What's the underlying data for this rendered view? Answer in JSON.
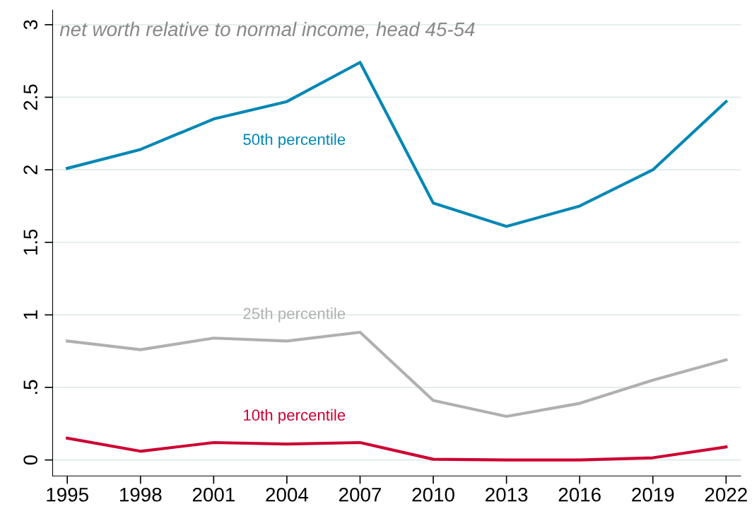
{
  "chart_data": {
    "type": "line",
    "subtitle": "net worth relative to normal income, head 45-54",
    "x": [
      1995,
      1998,
      2001,
      2004,
      2007,
      2010,
      2013,
      2016,
      2019,
      2022
    ],
    "series": [
      {
        "name": "50th percentile",
        "color": "#0087b4",
        "values": [
          2.01,
          2.14,
          2.35,
          2.47,
          2.74,
          1.77,
          1.61,
          1.75,
          2.0,
          2.47
        ]
      },
      {
        "name": "25th percentile",
        "color": "#b0b0b0",
        "values": [
          0.82,
          0.76,
          0.84,
          0.82,
          0.88,
          0.41,
          0.3,
          0.39,
          0.55,
          0.69
        ]
      },
      {
        "name": "10th percentile",
        "color": "#cc0033",
        "values": [
          0.15,
          0.06,
          0.12,
          0.11,
          0.12,
          0.005,
          0.0,
          0.0,
          0.015,
          0.09
        ]
      }
    ],
    "xlim": [
      1994.4,
      2022.6
    ],
    "xticks": [
      1995,
      1998,
      2001,
      2004,
      2007,
      2010,
      2013,
      2016,
      2019,
      2022
    ],
    "ylim": [
      -0.11,
      3.1
    ],
    "yticks": [
      0,
      {
        "value": 0.5,
        "label": ".5"
      },
      1,
      1.5,
      2,
      2.5,
      3
    ],
    "grid": "y",
    "legend": false,
    "line_style": "solid",
    "marker": "none"
  }
}
